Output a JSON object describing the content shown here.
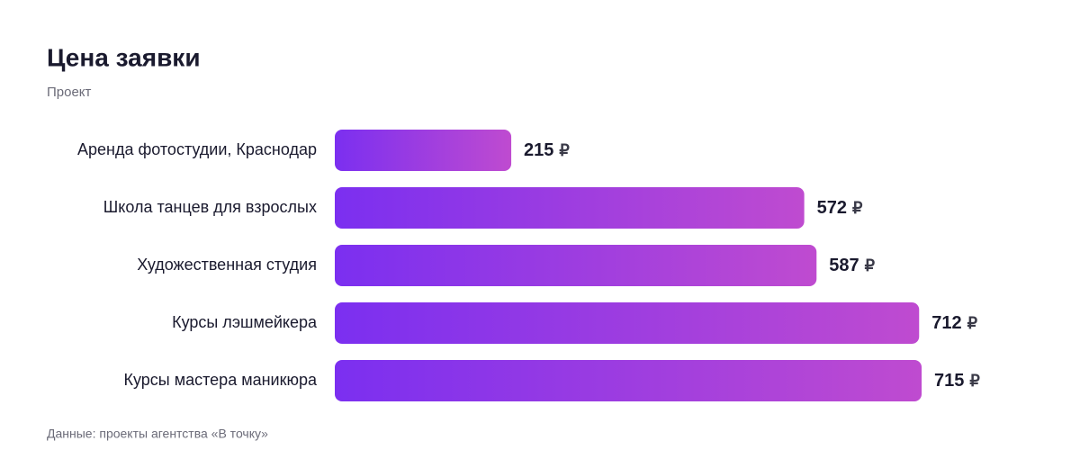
{
  "chart_data": {
    "type": "bar",
    "orientation": "horizontal",
    "title": "Цена заявки",
    "subtitle": "Проект",
    "categories": [
      "Аренда фотостудии, Краснодар",
      "Школа танцев для взрослых",
      "Художественная студия",
      "Курсы лэшмейкера",
      "Курсы мастера маникюра"
    ],
    "values": [
      215,
      572,
      587,
      712,
      715
    ],
    "unit": "₽",
    "color": [
      "#7b2ff0",
      "#bf4bd0"
    ],
    "note": "Данные: проекты агентства «В точку»"
  }
}
